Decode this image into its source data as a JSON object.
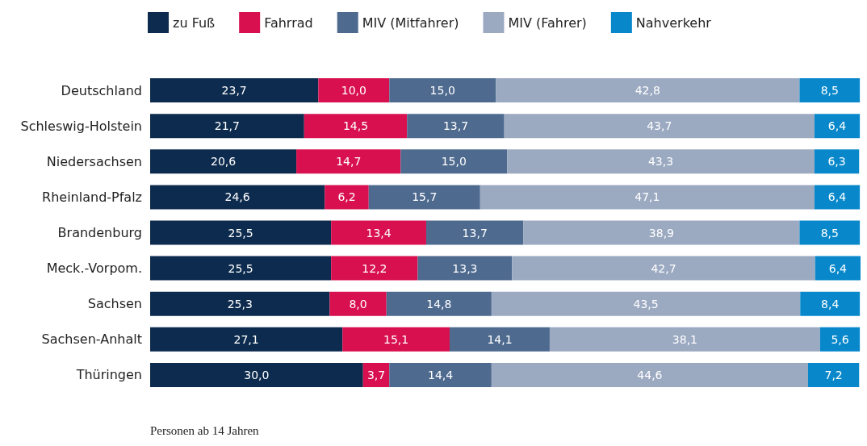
{
  "chart_data": {
    "type": "bar",
    "orientation": "horizontal",
    "stacked": true,
    "legend": "top",
    "categories": [
      "Deutschland",
      "Schleswig-Holstein",
      "Niedersachsen",
      "Rheinland-Pfalz",
      "Brandenburg",
      "Meck.-Vorpom.",
      "Sachsen",
      "Sachsen-Anhalt",
      "Thüringen"
    ],
    "series": [
      {
        "name": "zu Fuß",
        "color": "#0d2b4e",
        "values": [
          23.7,
          21.7,
          20.6,
          24.6,
          25.5,
          25.5,
          25.3,
          27.1,
          30.0
        ],
        "value_labels": [
          "23,7",
          "21,7",
          "20,6",
          "24,6",
          "25,5",
          "25,5",
          "25,3",
          "27,1",
          "30,0"
        ]
      },
      {
        "name": "Fahrrad",
        "color": "#d8104f",
        "values": [
          10.0,
          14.5,
          14.7,
          6.2,
          13.4,
          12.2,
          8.0,
          15.1,
          3.7
        ],
        "value_labels": [
          "10,0",
          "14,5",
          "14,7",
          "6,2",
          "13,4",
          "12,2",
          "8,0",
          "15,1",
          "3,7"
        ]
      },
      {
        "name": "MIV (Mitfahrer)",
        "color": "#4e6a8f",
        "values": [
          15.0,
          13.7,
          15.0,
          15.7,
          13.7,
          13.3,
          14.8,
          14.1,
          14.4
        ],
        "value_labels": [
          "15,0",
          "13,7",
          "15,0",
          "15,7",
          "13,7",
          "13,3",
          "14,8",
          "14,1",
          "14,4"
        ]
      },
      {
        "name": "MIV (Fahrer)",
        "color": "#9ba9c1",
        "values": [
          42.8,
          43.7,
          43.3,
          47.1,
          38.9,
          42.7,
          43.5,
          38.1,
          44.6
        ],
        "value_labels": [
          "42,8",
          "43,7",
          "43,3",
          "47,1",
          "38,9",
          "42,7",
          "43,5",
          "38,1",
          "44,6"
        ]
      },
      {
        "name": "Nahverkehr",
        "color": "#0888cb",
        "values": [
          8.5,
          6.4,
          6.3,
          6.4,
          8.5,
          6.4,
          8.4,
          5.6,
          7.2
        ],
        "value_labels": [
          "8,5",
          "6,4",
          "6,3",
          "6,4",
          "8,5",
          "6,4",
          "8,4",
          "5,6",
          "7,2"
        ]
      }
    ],
    "annotations": [
      "Personen ab 14 Jahren"
    ]
  }
}
